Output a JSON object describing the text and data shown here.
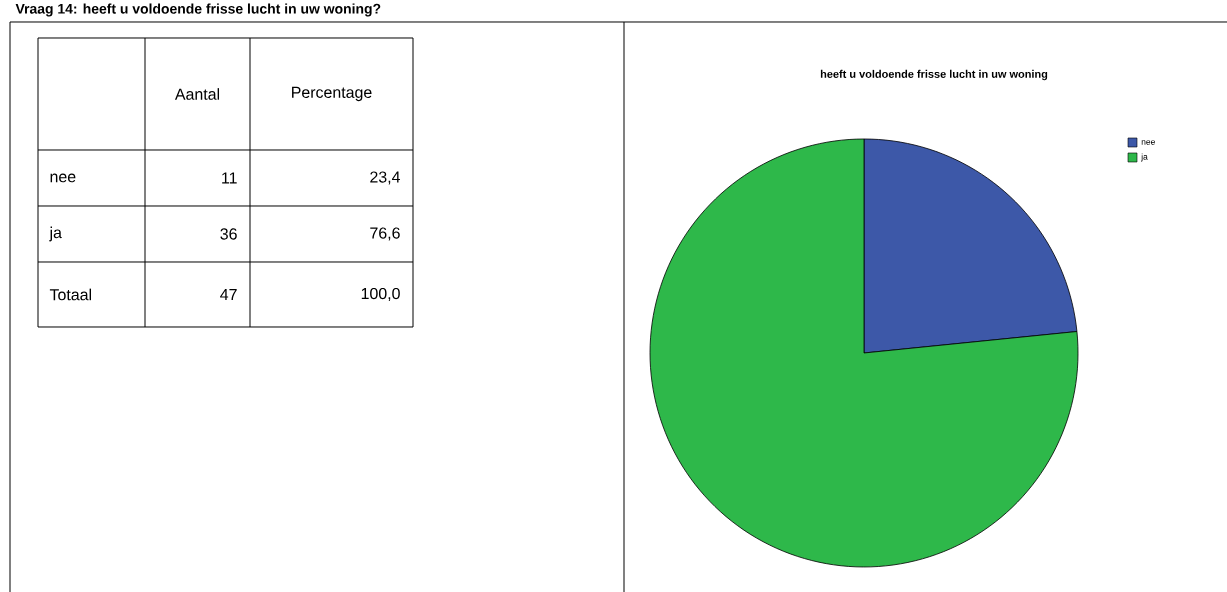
{
  "chart_data": [
    {
      "type": "other",
      "title": "Vraag 14: heeft u voldoende frisse lucht in uw woning?",
      "categories": [
        "nee",
        "ja",
        "Totaal"
      ],
      "data_labels": true,
      "series": [
        {
          "name": "Aantal",
          "values": [
            11,
            36,
            47
          ]
        }
      ],
      "annotations": [
        "Percentage",
        "23,4",
        "76,6",
        "100,0"
      ]
    },
    {
      "type": "pie",
      "title": "heeft u voldoende frisse lucht in uw woning",
      "categories": [
        "nee",
        "ja"
      ],
      "values": [
        23.4,
        76.6
      ],
      "colors": [
        "#3d58a8",
        "#2eb84a"
      ],
      "legend": "top right"
    }
  ]
}
